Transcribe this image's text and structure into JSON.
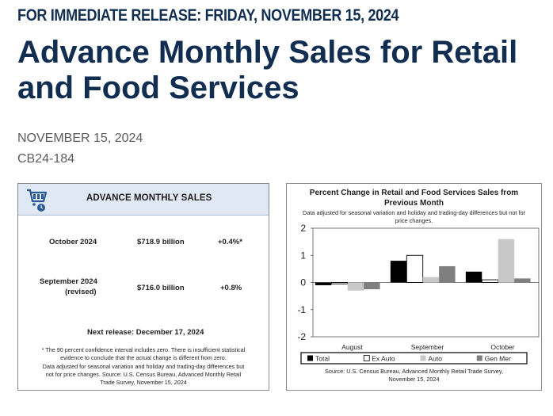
{
  "header": {
    "release_line": "FOR IMMEDIATE RELEASE: FRIDAY, NOVEMBER 15, 2024",
    "title_line1": "Advance Monthly Sales for Retail",
    "title_line2": "and Food Services",
    "date": "NOVEMBER 15, 2024",
    "release_number": "CB24-184"
  },
  "summary": {
    "title": "ADVANCE MONTHLY SALES",
    "icon": "shopping-cart-clock-icon",
    "rows": [
      {
        "period": "October 2024",
        "period_note": "",
        "value": "$718.9 billion",
        "change": "+0.4%*"
      },
      {
        "period": "September 2024",
        "period_note": "(revised)",
        "value": "$716.0 billion",
        "change": "+0.8%"
      }
    ],
    "next_release": "Next release: December 17, 2024",
    "footnote_1": "* The 90 percent confidence interval includes zero. There is insufficient statistical",
    "footnote_2": "evidence to conclude that the actual change is different from zero.",
    "footnote_3": "Data adjusted for seasonal variation and holiday and trading-day differences but",
    "footnote_4": "not for price changes. Source: U.S. Census Bureau, Advanced Monthly Retail",
    "footnote_5": "Trade Survey, November 15, 2024"
  },
  "chart_data": {
    "type": "bar",
    "title_line1": "Percent Change in Retail and Food Services Sales from",
    "title_line2": "Previous Month",
    "subtitle_line1": "Data adjusted for seasonal variation and holiday and trading-day differences but not for",
    "subtitle_line2": "price changes.",
    "categories": [
      "August",
      "September",
      "October"
    ],
    "series": [
      {
        "name": "Total",
        "color": "#000000",
        "values": [
          -0.1,
          0.8,
          0.4
        ]
      },
      {
        "name": "Ex Auto",
        "color": "#ffffff",
        "values": [
          -0.05,
          1.0,
          0.1
        ]
      },
      {
        "name": "Auto",
        "color": "#c8c8c8",
        "values": [
          -0.3,
          0.2,
          1.6
        ]
      },
      {
        "name": "Gen Mer",
        "color": "#7f7f7f",
        "values": [
          -0.25,
          0.6,
          0.15
        ]
      }
    ],
    "ylim": [
      -2,
      2
    ],
    "yticks": [
      "2",
      "1",
      "0",
      "-1",
      "-2"
    ],
    "legend_position": "bottom",
    "source_line1": "Source: U.S. Census Bureau, Advanced Monthly Retail Trade Survey,",
    "source_line2": "November 15, 2024"
  }
}
